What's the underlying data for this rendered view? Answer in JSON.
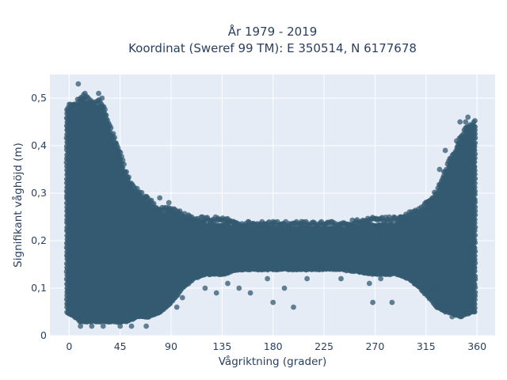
{
  "chart_data": {
    "type": "scatter",
    "title_line1": "År 1979 - 2019",
    "title_line2": "Koordinat (Sweref 99 TM): E 350514, N 6177678",
    "xlabel": "Vågriktning (grader)",
    "ylabel": "Signifikant våghöjd (m)",
    "xlim": [
      -17,
      376
    ],
    "ylim": [
      0,
      0.55
    ],
    "x_ticks": [
      0,
      45,
      90,
      135,
      180,
      225,
      270,
      315,
      360
    ],
    "x_tick_labels": [
      "0",
      "45",
      "90",
      "135",
      "180",
      "225",
      "270",
      "315",
      "360"
    ],
    "y_ticks": [
      0,
      0.1,
      0.2,
      0.3,
      0.4,
      0.5
    ],
    "y_tick_labels": [
      "0",
      "0,1",
      "0,2",
      "0,3",
      "0,4",
      "0,5"
    ],
    "grid": true,
    "marker_color": "#335a70",
    "plot_background": "#e5ecf6",
    "series": [
      {
        "envelope_upper": [
          [
            -2,
            0.47
          ],
          [
            0,
            0.48
          ],
          [
            5,
            0.48
          ],
          [
            8,
            0.49
          ],
          [
            12,
            0.5
          ],
          [
            18,
            0.49
          ],
          [
            22,
            0.48
          ],
          [
            27,
            0.49
          ],
          [
            30,
            0.48
          ],
          [
            34,
            0.45
          ],
          [
            38,
            0.42
          ],
          [
            42,
            0.4
          ],
          [
            46,
            0.37
          ],
          [
            50,
            0.34
          ],
          [
            55,
            0.31
          ],
          [
            60,
            0.3
          ],
          [
            65,
            0.29
          ],
          [
            70,
            0.28
          ],
          [
            75,
            0.27
          ],
          [
            80,
            0.26
          ],
          [
            90,
            0.26
          ],
          [
            100,
            0.25
          ],
          [
            110,
            0.24
          ],
          [
            120,
            0.24
          ],
          [
            135,
            0.24
          ],
          [
            150,
            0.23
          ],
          [
            180,
            0.23
          ],
          [
            210,
            0.23
          ],
          [
            240,
            0.23
          ],
          [
            270,
            0.24
          ],
          [
            290,
            0.24
          ],
          [
            300,
            0.25
          ],
          [
            310,
            0.26
          ],
          [
            318,
            0.28
          ],
          [
            325,
            0.3
          ],
          [
            330,
            0.33
          ],
          [
            335,
            0.36
          ],
          [
            340,
            0.38
          ],
          [
            345,
            0.41
          ],
          [
            350,
            0.43
          ],
          [
            355,
            0.44
          ],
          [
            359,
            0.45
          ]
        ],
        "envelope_lower": [
          [
            -2,
            0.05
          ],
          [
            5,
            0.04
          ],
          [
            10,
            0.03
          ],
          [
            20,
            0.03
          ],
          [
            30,
            0.03
          ],
          [
            40,
            0.03
          ],
          [
            50,
            0.03
          ],
          [
            60,
            0.04
          ],
          [
            70,
            0.04
          ],
          [
            80,
            0.05
          ],
          [
            90,
            0.07
          ],
          [
            100,
            0.1
          ],
          [
            110,
            0.12
          ],
          [
            120,
            0.13
          ],
          [
            135,
            0.13
          ],
          [
            150,
            0.14
          ],
          [
            180,
            0.14
          ],
          [
            210,
            0.14
          ],
          [
            240,
            0.14
          ],
          [
            270,
            0.13
          ],
          [
            290,
            0.13
          ],
          [
            300,
            0.12
          ],
          [
            310,
            0.1
          ],
          [
            318,
            0.08
          ],
          [
            325,
            0.06
          ],
          [
            335,
            0.05
          ],
          [
            345,
            0.04
          ],
          [
            355,
            0.05
          ],
          [
            359,
            0.05
          ]
        ],
        "outliers": [
          [
            8,
            0.53
          ],
          [
            14,
            0.51
          ],
          [
            26,
            0.51
          ],
          [
            29,
            0.5
          ],
          [
            10,
            0.02
          ],
          [
            20,
            0.02
          ],
          [
            30,
            0.02
          ],
          [
            45,
            0.02
          ],
          [
            55,
            0.02
          ],
          [
            68,
            0.02
          ],
          [
            68,
            0.29
          ],
          [
            80,
            0.29
          ],
          [
            88,
            0.28
          ],
          [
            95,
            0.06
          ],
          [
            100,
            0.08
          ],
          [
            120,
            0.1
          ],
          [
            130,
            0.09
          ],
          [
            140,
            0.11
          ],
          [
            150,
            0.1
          ],
          [
            160,
            0.09
          ],
          [
            175,
            0.12
          ],
          [
            180,
            0.07
          ],
          [
            190,
            0.1
          ],
          [
            198,
            0.06
          ],
          [
            210,
            0.12
          ],
          [
            240,
            0.12
          ],
          [
            265,
            0.11
          ],
          [
            268,
            0.07
          ],
          [
            275,
            0.12
          ],
          [
            285,
            0.07
          ],
          [
            180,
            0.24
          ],
          [
            205,
            0.24
          ],
          [
            158,
            0.24
          ],
          [
            293,
            0.25
          ],
          [
            345,
            0.45
          ],
          [
            350,
            0.45
          ],
          [
            352,
            0.46
          ],
          [
            332,
            0.39
          ],
          [
            327,
            0.35
          ],
          [
            332,
            0.05
          ],
          [
            338,
            0.04
          ],
          [
            322,
            0.1
          ],
          [
            342,
            0.41
          ]
        ]
      }
    ]
  }
}
